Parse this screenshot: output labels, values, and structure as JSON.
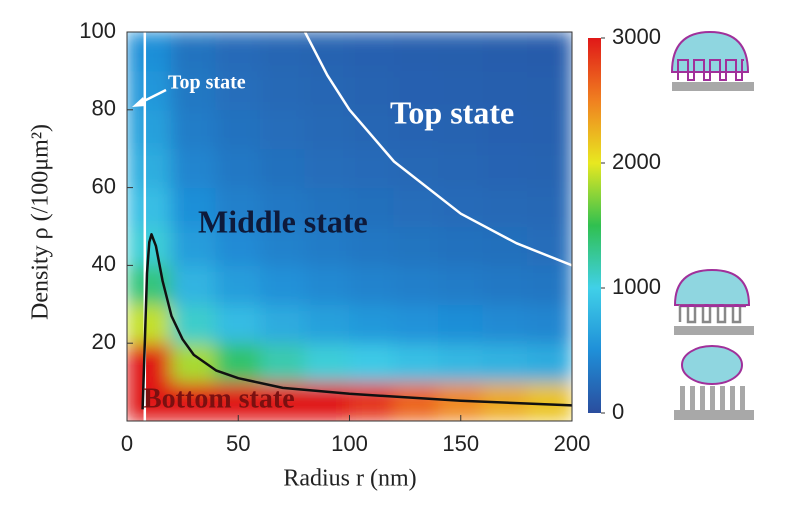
{
  "chart_data": {
    "type": "heatmap",
    "x_label": "Radius r (nm)",
    "y_label": "Density ρ (/100μm²)",
    "xlim": [
      0,
      200
    ],
    "xticks": [
      0,
      50,
      100,
      150,
      200
    ],
    "ylim": [
      0,
      100
    ],
    "yticks": [
      20,
      40,
      60,
      80,
      100
    ],
    "x_centers": [
      10,
      30,
      50,
      70,
      90,
      110,
      130,
      150,
      170,
      190
    ],
    "y_centers": [
      5,
      15,
      25,
      35,
      45,
      55,
      65,
      75,
      85,
      95
    ],
    "values": [
      [
        3000,
        3000,
        3000,
        3000,
        3000,
        2860,
        2630,
        2450,
        2300,
        2180
      ],
      [
        3000,
        1825,
        1414,
        1195,
        1054,
        953,
        877,
        816,
        767,
        726
      ],
      [
        1899,
        1095,
        849,
        717,
        632,
        572,
        526,
        490,
        460,
        435
      ],
      [
        1356,
        782,
        606,
        512,
        452,
        409,
        376,
        350,
        329,
        311
      ],
      [
        1055,
        608,
        471,
        398,
        351,
        318,
        292,
        272,
        256,
        242
      ],
      [
        863,
        498,
        386,
        326,
        287,
        260,
        239,
        223,
        209,
        198
      ],
      [
        730,
        421,
        326,
        276,
        243,
        220,
        202,
        188,
        177,
        167
      ],
      [
        633,
        365,
        283,
        239,
        211,
        191,
        175,
        163,
        153,
        145
      ],
      [
        558,
        322,
        250,
        211,
        186,
        168,
        155,
        144,
        135,
        128
      ],
      [
        500,
        288,
        223,
        189,
        166,
        151,
        139,
        129,
        121,
        115
      ]
    ],
    "colormap": [
      "#2a4d9e",
      "#1f8fd8",
      "#40d0e8",
      "#30c050",
      "#e8e820",
      "#f08020",
      "#e01818"
    ],
    "colorbar": {
      "lim": [
        0,
        3000
      ],
      "ticks": [
        0,
        1000,
        2000,
        3000
      ]
    },
    "lines": [
      {
        "color": "#ffffff",
        "x": [
          80,
          90,
          100,
          120,
          150,
          175,
          200
        ],
        "y": [
          100,
          88.9,
          80,
          66.7,
          53.3,
          45.7,
          40
        ]
      },
      {
        "color": "#ffffff",
        "x": [
          8,
          8
        ],
        "y": [
          0,
          100
        ]
      },
      {
        "color": "#111111",
        "x": [
          7,
          8,
          9,
          10,
          11,
          13,
          16,
          20,
          25,
          30,
          40,
          50,
          70,
          100,
          150,
          200
        ],
        "y": [
          3,
          20,
          38,
          46,
          48,
          45,
          36,
          27,
          21,
          17,
          13,
          11,
          8.5,
          7,
          5.2,
          4
        ]
      }
    ],
    "annotations": [
      "Top state",
      "Top state",
      "Middle state",
      "Bottom state"
    ]
  }
}
